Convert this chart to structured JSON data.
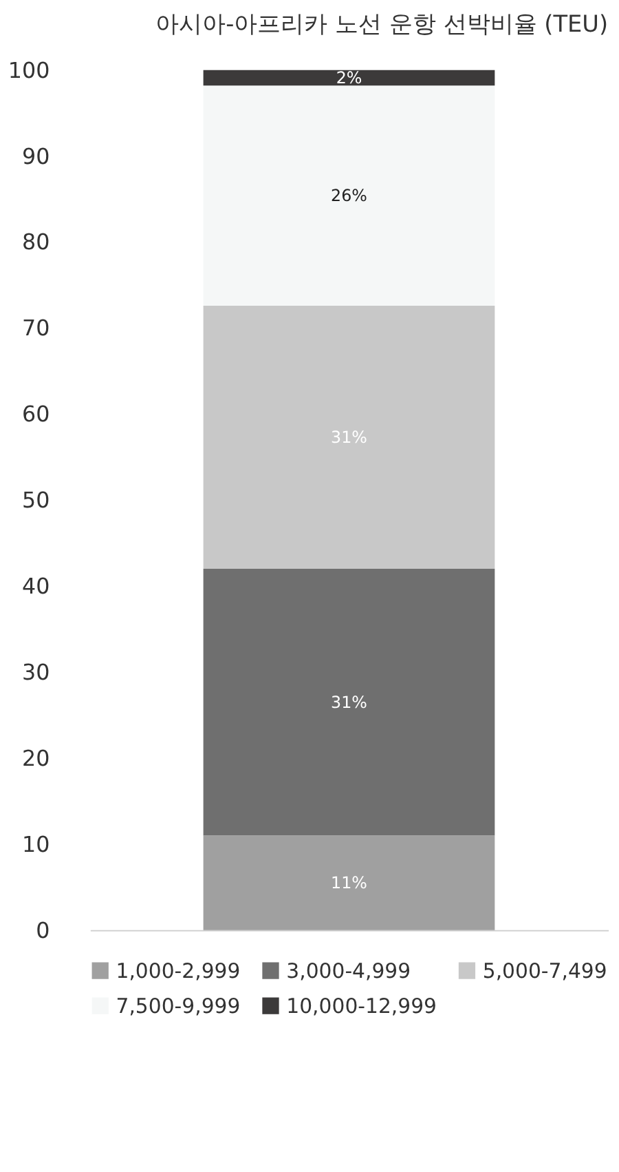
{
  "chart_data": {
    "type": "bar",
    "title": "아시아-아프리카 노선 운항 선박비율 (TEU)",
    "categories": [
      null
    ],
    "stacked": true,
    "series": [
      {
        "name": "1,000-2,999",
        "color": "#a0a0a0",
        "values": [
          11
        ],
        "value_labels": [
          "11%"
        ]
      },
      {
        "name": "3,000-4,999",
        "color": "#6f6f6f",
        "values": [
          31
        ],
        "value_labels": [
          "31%"
        ]
      },
      {
        "name": "5,000-7,499",
        "color": "#c8c8c8",
        "values": [
          30.6
        ],
        "value_labels": [
          "31%"
        ]
      },
      {
        "name": "7,500-9,999",
        "color": "#f5f7f7",
        "values": [
          25.6
        ],
        "value_labels": [
          "26%"
        ]
      },
      {
        "name": "10,000-12,999",
        "color": "#3c3a3a",
        "values": [
          1.8
        ],
        "value_labels": [
          "2%"
        ]
      }
    ],
    "ylim": [
      0,
      100
    ],
    "yticks": [
      0,
      10,
      20,
      30,
      40,
      50,
      60,
      70,
      80,
      90,
      100
    ],
    "grid": false,
    "legend": "bottom",
    "tick_labels": "y"
  }
}
